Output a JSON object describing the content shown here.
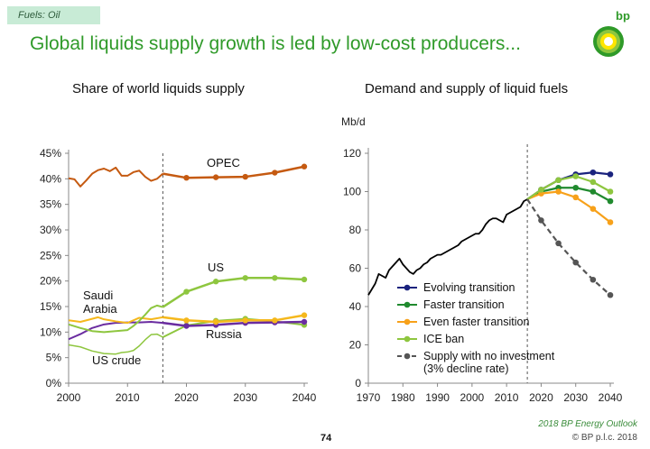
{
  "tag": "Fuels: Oil",
  "headline": "Global liquids supply growth is led by low-cost producers...",
  "brand": "bp",
  "page_number": "74",
  "source": "2018 BP Energy Outlook",
  "copyright": "© BP p.l.c. 2018",
  "colors": {
    "headline": "#2f9a29",
    "opec": "#c55a11",
    "us": "#8ec63f",
    "russia": "#6a2ca0",
    "us_crude": "#8ec63f",
    "saudi": "#f5b81c"
  },
  "chart_data": [
    {
      "type": "line",
      "title": "Share of world liquids supply",
      "xlabel": "",
      "ylabel": "",
      "xlim": [
        2000,
        2040
      ],
      "ylim": [
        0,
        45
      ],
      "x_ticks": [
        "2000",
        "2010",
        "2020",
        "2030",
        "2040"
      ],
      "y_ticks": [
        "0%",
        "5%",
        "10%",
        "15%",
        "20%",
        "25%",
        "30%",
        "35%",
        "40%",
        "45%"
      ],
      "projection_start": 2016,
      "series": [
        {
          "name": "OPEC",
          "color": "#c55a11",
          "width": 2,
          "x": [
            2000,
            2001,
            2002,
            2003,
            2004,
            2005,
            2006,
            2007,
            2008,
            2009,
            2010,
            2011,
            2012,
            2013,
            2014,
            2015,
            2016
          ],
          "y": [
            40.1,
            39.9,
            38.5,
            39.7,
            41.0,
            41.7,
            42.0,
            41.5,
            42.2,
            40.6,
            40.6,
            41.3,
            41.6,
            40.4,
            39.6,
            40.0,
            41.0
          ],
          "proj_x": [
            2016,
            2020,
            2025,
            2030,
            2035,
            2040
          ],
          "proj_y": [
            41.0,
            40.2,
            40.3,
            40.4,
            41.2,
            42.4
          ]
        },
        {
          "name": "US",
          "color": "#8ec63f",
          "width": 2,
          "x": [
            2000,
            2002,
            2004,
            2006,
            2008,
            2010,
            2011,
            2012,
            2013,
            2014,
            2015,
            2016
          ],
          "y": [
            11.5,
            10.8,
            10.2,
            10.0,
            10.2,
            10.4,
            11.2,
            12.2,
            13.4,
            14.7,
            15.2,
            14.9
          ],
          "proj_x": [
            2016,
            2020,
            2025,
            2030,
            2035,
            2040
          ],
          "proj_y": [
            14.9,
            17.9,
            19.9,
            20.6,
            20.6,
            20.3
          ]
        },
        {
          "name": "Saudi Arabia",
          "color": "#f5b81c",
          "width": 2,
          "x": [
            2000,
            2002,
            2004,
            2005,
            2006,
            2008,
            2010,
            2012,
            2014,
            2016
          ],
          "y": [
            12.3,
            12.0,
            12.6,
            12.9,
            12.5,
            12.1,
            11.8,
            12.8,
            12.5,
            12.9
          ],
          "proj_x": [
            2016,
            2020,
            2025,
            2030,
            2035,
            2040
          ],
          "proj_y": [
            12.9,
            12.3,
            12.0,
            12.3,
            12.3,
            13.3
          ]
        },
        {
          "name": "Russia",
          "color": "#6a2ca0",
          "width": 2,
          "x": [
            2000,
            2002,
            2004,
            2006,
            2008,
            2010,
            2012,
            2014,
            2016
          ],
          "y": [
            8.6,
            9.6,
            10.8,
            11.5,
            11.8,
            11.9,
            11.9,
            12.0,
            11.8
          ],
          "proj_x": [
            2016,
            2020,
            2025,
            2030,
            2035,
            2040
          ],
          "proj_y": [
            11.8,
            11.2,
            11.4,
            11.8,
            11.9,
            12.0
          ]
        },
        {
          "name": "US crude",
          "color": "#8ec63f",
          "width": 1.5,
          "x": [
            2000,
            2002,
            2004,
            2006,
            2008,
            2009,
            2010,
            2011,
            2012,
            2013,
            2014,
            2015,
            2016
          ],
          "y": [
            7.5,
            7.1,
            6.3,
            5.8,
            5.7,
            6.0,
            6.1,
            6.4,
            7.3,
            8.5,
            9.5,
            9.6,
            9.0
          ],
          "proj_x": [
            2016,
            2020,
            2025,
            2030,
            2035,
            2040
          ],
          "proj_y": [
            9.0,
            11.3,
            12.2,
            12.6,
            12.1,
            11.4
          ]
        }
      ],
      "annotations": [
        "OPEC",
        "US",
        "Saudi",
        "Arabia",
        "Russia",
        "US crude"
      ]
    },
    {
      "type": "line",
      "title": "Demand and supply of liquid fuels",
      "xlabel": "",
      "ylabel": "Mb/d",
      "xlim": [
        1970,
        2040
      ],
      "ylim": [
        0,
        120
      ],
      "x_ticks": [
        "1970",
        "1980",
        "1990",
        "2000",
        "2010",
        "2020",
        "2030",
        "2040"
      ],
      "y_ticks": [
        "0",
        "20",
        "40",
        "60",
        "80",
        "100",
        "120"
      ],
      "projection_start": 2016,
      "history": {
        "color": "#000000",
        "x": [
          1970,
          1971,
          1972,
          1973,
          1974,
          1975,
          1976,
          1977,
          1978,
          1979,
          1980,
          1981,
          1982,
          1983,
          1984,
          1985,
          1986,
          1987,
          1988,
          1989,
          1990,
          1991,
          1992,
          1993,
          1994,
          1995,
          1996,
          1997,
          1998,
          1999,
          2000,
          2001,
          2002,
          2003,
          2004,
          2005,
          2006,
          2007,
          2008,
          2009,
          2010,
          2011,
          2012,
          2013,
          2014,
          2015,
          2016
        ],
        "y": [
          46,
          49,
          52,
          57,
          56,
          55,
          59,
          61,
          63,
          65,
          62,
          60,
          58,
          57,
          59,
          60,
          62,
          63,
          65,
          66,
          67,
          67,
          68,
          69,
          70,
          71,
          72,
          74,
          75,
          76,
          77,
          78,
          78,
          80,
          83,
          85,
          86,
          86,
          85,
          84,
          88,
          89,
          90,
          91,
          92,
          95,
          96
        ]
      },
      "series": [
        {
          "name": "Evolving transition",
          "color": "#1a237e",
          "x": [
            2016,
            2020,
            2025,
            2030,
            2035,
            2040
          ],
          "y": [
            96,
            101,
            106,
            109,
            110,
            109
          ]
        },
        {
          "name": "Faster transition",
          "color": "#208a2e",
          "x": [
            2016,
            2020,
            2025,
            2030,
            2035,
            2040
          ],
          "y": [
            96,
            100,
            102,
            102,
            100,
            95
          ]
        },
        {
          "name": "Even faster transition",
          "color": "#f7a11a",
          "x": [
            2016,
            2020,
            2025,
            2030,
            2035,
            2040
          ],
          "y": [
            96,
            99,
            100,
            97,
            91,
            84
          ]
        },
        {
          "name": "ICE ban",
          "color": "#8ec63f",
          "x": [
            2016,
            2020,
            2025,
            2030,
            2035,
            2040
          ],
          "y": [
            96,
            101,
            106,
            108,
            105,
            100
          ]
        },
        {
          "name": "Supply with no investment",
          "color": "#555555",
          "dashed": true,
          "x": [
            2016,
            2020,
            2025,
            2030,
            2035,
            2040
          ],
          "y": [
            96,
            85,
            73,
            63,
            54,
            46
          ]
        }
      ],
      "legend": {
        "placement": "bottom-right",
        "items": [
          "Evolving transition",
          "Faster transition",
          "Even faster transition",
          "ICE ban",
          "Supply with no investment"
        ],
        "note": "(3% decline rate)"
      }
    }
  ]
}
